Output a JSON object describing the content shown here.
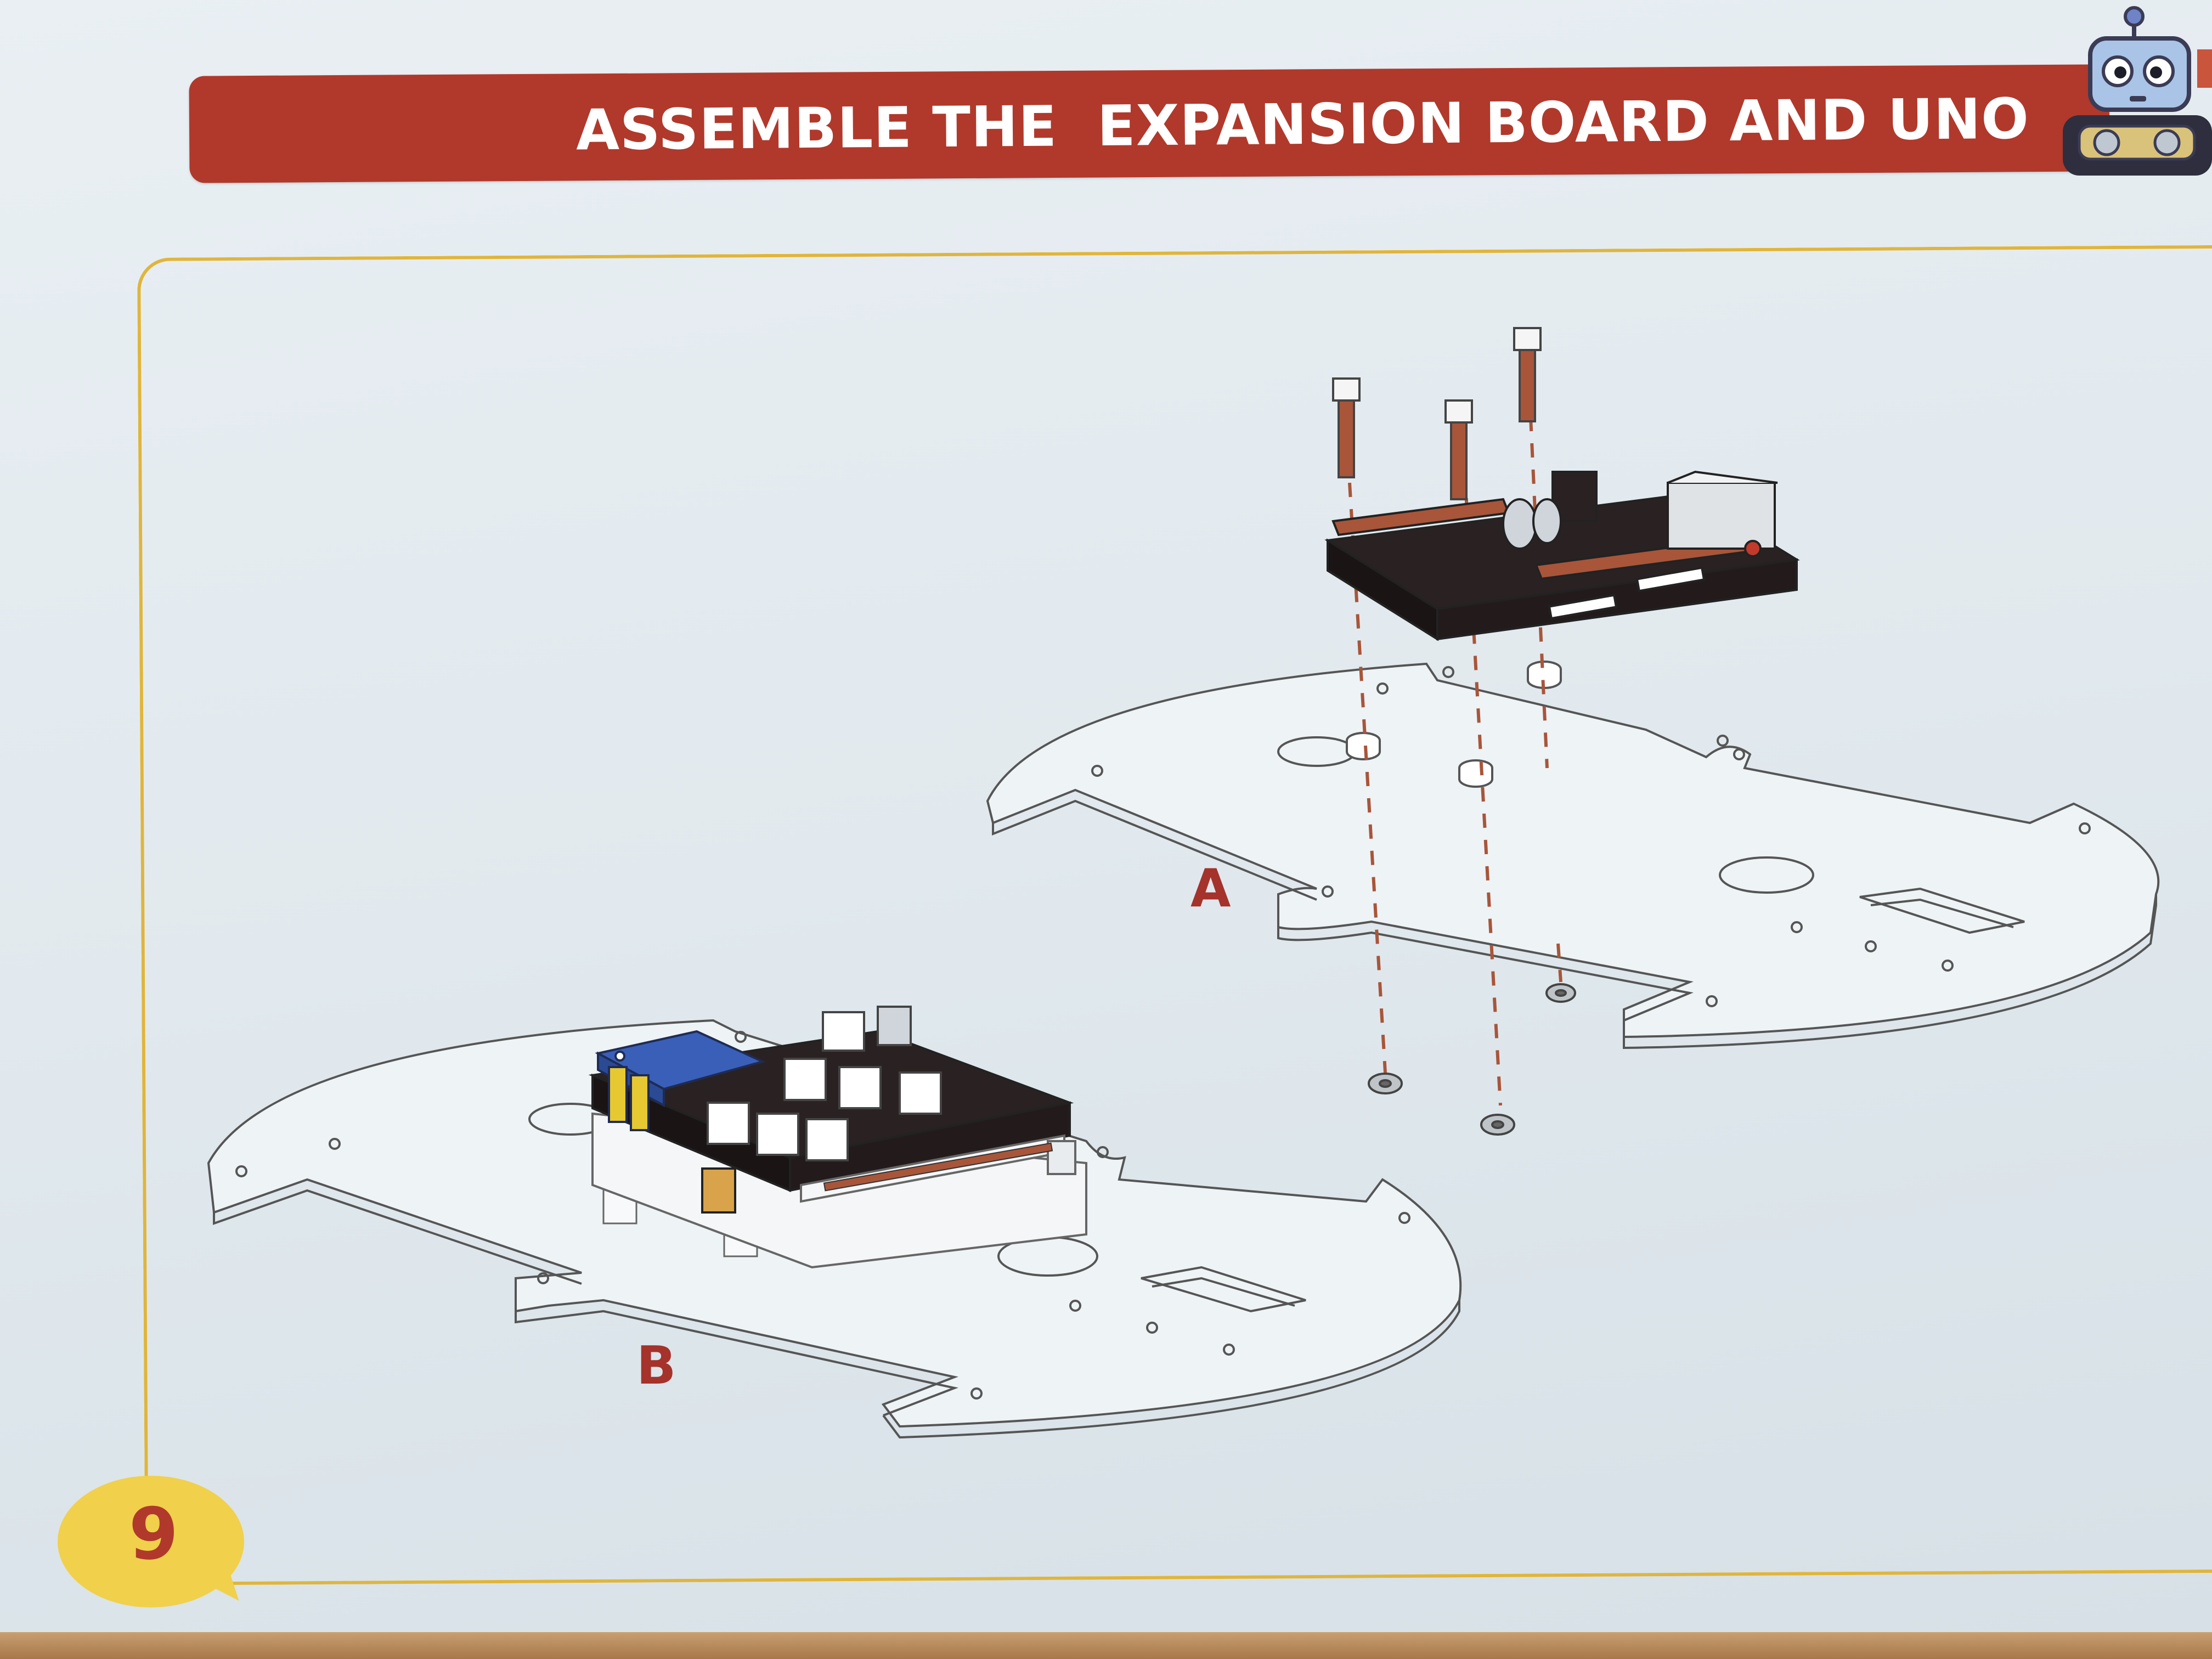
{
  "header": {
    "title": "ASSEMBLE THE  EXPANSION BOARD AND UNO"
  },
  "labels": {
    "a": "A",
    "b": "B"
  },
  "page": {
    "number": "9"
  },
  "mascot": {
    "icon": "robot-mascot-icon"
  },
  "colors": {
    "banner": "#b0392c",
    "frame_line": "#e0b53a",
    "bubble": "#f1d04b",
    "label_text": "#a5322b",
    "board_dark": "#2a2222",
    "copper": "#a8553a",
    "module_blue": "#3a5fb8"
  }
}
